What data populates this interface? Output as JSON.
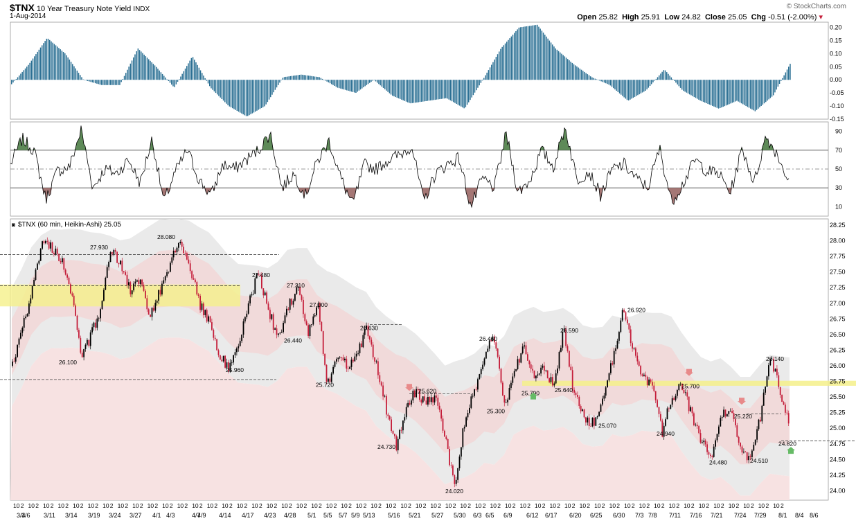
{
  "header": {
    "symbol": "$TNX",
    "name": "10 Year Treasury Note Yield",
    "exchange": "INDX",
    "date": "1-Aug-2014",
    "open_label": "Open",
    "open": "25.82",
    "high_label": "High",
    "high": "25.91",
    "low_label": "Low",
    "low": "24.82",
    "close_label": "Close",
    "close": "25.05",
    "chg_label": "Chg",
    "chg": "-0.51 (-2.00%)",
    "watermark": "© StockCharts.com"
  },
  "colors": {
    "osc_bar": "#2a6f93",
    "rsi_line": "#000000",
    "rsi_overbought": "#5e8a58",
    "rsi_oversold": "#a57775",
    "candle_up": "#000000",
    "candle_down": "#c41e3a",
    "highlight": "#f5f08a",
    "band_outer": "#e8e8e8",
    "band_inner": "#f2d6d6"
  },
  "chart_data": [
    {
      "type": "bar",
      "panel": "oscillator",
      "ylim": [
        -0.15,
        0.22
      ],
      "y_ticks": [
        "0.20",
        "0.15",
        "0.10",
        "0.05",
        "0.00",
        "-0.05",
        "-0.10",
        "-0.15"
      ],
      "series": [
        {
          "values": [
            -0.02,
            0.06,
            0.16,
            0.1,
            0.0,
            -0.02,
            -0.02,
            0.12,
            0.05,
            -0.03,
            0.09,
            -0.03,
            -0.1,
            -0.14,
            -0.1,
            0.01,
            0.02,
            0.01,
            -0.03,
            -0.05,
            0.0,
            -0.06,
            -0.09,
            -0.08,
            -0.07,
            -0.11,
            0.0,
            0.12,
            0.2,
            0.21,
            0.12,
            0.06,
            0.01,
            -0.02,
            -0.08,
            -0.04,
            0.04,
            -0.04,
            -0.08,
            -0.11,
            -0.08,
            -0.12,
            -0.06,
            0.07
          ]
        }
      ]
    },
    {
      "type": "line",
      "panel": "rsi",
      "ylim": [
        0,
        100
      ],
      "levels": [
        30,
        50,
        70
      ],
      "y_ticks": [
        "90",
        "70",
        "50",
        "30",
        "10"
      ],
      "series": [
        {
          "values": [
            55,
            82,
            70,
            18,
            48,
            52,
            92,
            30,
            50,
            45,
            60,
            35,
            82,
            15,
            48,
            70,
            38,
            22,
            55,
            50,
            60,
            70,
            88,
            30,
            45,
            22,
            58,
            80,
            40,
            12,
            55,
            50,
            60,
            65,
            75,
            15,
            45,
            55,
            62,
            10,
            40,
            30,
            88,
            25,
            38,
            70,
            52,
            95,
            38,
            48,
            22,
            50,
            55,
            40,
            30,
            72,
            15,
            35,
            60,
            48,
            45,
            25,
            72,
            35,
            85,
            65,
            35
          ]
        }
      ]
    },
    {
      "type": "candlestick",
      "panel": "price",
      "title": "$TNX (60 min, Heikin-Ashi) 25.05",
      "ylim": [
        23.85,
        28.35
      ],
      "y_ticks": [
        "28.25",
        "28.00",
        "27.75",
        "27.50",
        "27.25",
        "27.00",
        "26.75",
        "26.50",
        "26.25",
        "26.00",
        "25.75",
        "25.50",
        "25.25",
        "25.00",
        "24.75",
        "24.50",
        "24.25",
        "24.00"
      ],
      "x_ticks": [
        "3/4",
        "3/6",
        "3/11",
        "3/14",
        "3/19",
        "3/24",
        "3/27",
        "4/1",
        "4/3",
        "4/7",
        "4/9",
        "4/14",
        "4/17",
        "4/23",
        "4/28",
        "5/1",
        "5/5",
        "5/7",
        "5/9",
        "5/13",
        "5/16",
        "5/21",
        "5/27",
        "5/30",
        "6/3",
        "6/5",
        "6/9",
        "6/12",
        "6/17",
        "6/20",
        "6/25",
        "6/30",
        "7/3",
        "7/8",
        "7/11",
        "7/16",
        "7/21",
        "7/24",
        "7/29",
        "8/1",
        "8/4",
        "8/6"
      ],
      "hour_ticks": [
        "10",
        "2",
        "10",
        "2",
        "10",
        "2",
        "10",
        "2",
        "10",
        "2",
        "10",
        "2",
        "10",
        "2",
        "10",
        "2",
        "10",
        "2",
        "10",
        "2",
        "10",
        "2",
        "10",
        "2",
        "10",
        "2",
        "10",
        "2",
        "10",
        "2",
        "10",
        "2",
        "10",
        "2",
        "10",
        "2",
        "10",
        "2",
        "10",
        "2",
        "10",
        "2",
        "10",
        "2",
        "10",
        "2",
        "10",
        "2",
        "10",
        "2",
        "10",
        "2",
        "10",
        "2",
        "10",
        "2",
        "10",
        "2",
        "10",
        "2",
        "10",
        "2",
        "10",
        "2",
        "10",
        "2",
        "10",
        "2",
        "10",
        "2",
        "10",
        "2",
        "10",
        "2",
        "10",
        "2",
        "10",
        "2",
        "10",
        "2",
        "10",
        "2",
        "10",
        "2",
        "10",
        "2",
        "10",
        "2",
        "10",
        "2",
        "10",
        "2",
        "10",
        "2",
        "10",
        "2",
        "10",
        "2",
        "10",
        "2",
        "10",
        "2",
        "10",
        "2"
      ],
      "close_path": [
        26.0,
        26.6,
        27.2,
        28.0,
        27.9,
        27.7,
        27.2,
        26.1,
        26.5,
        26.9,
        27.9,
        27.6,
        27.2,
        27.4,
        26.8,
        27.2,
        27.6,
        28.0,
        27.6,
        27.0,
        26.7,
        26.2,
        25.96,
        26.3,
        27.0,
        27.48,
        26.9,
        26.44,
        26.9,
        27.31,
        26.5,
        27.0,
        25.72,
        26.1,
        26.0,
        26.2,
        26.6,
        26.0,
        25.3,
        24.73,
        25.3,
        25.62,
        25.4,
        25.5,
        24.8,
        24.02,
        25.2,
        25.6,
        26.2,
        26.46,
        25.3,
        25.9,
        26.3,
        25.79,
        26.0,
        25.64,
        26.59,
        25.6,
        25.2,
        25.07,
        25.5,
        26.1,
        26.92,
        26.3,
        25.8,
        25.7,
        24.94,
        25.5,
        25.7,
        25.2,
        24.8,
        24.48,
        25.22,
        25.3,
        24.6,
        24.51,
        25.2,
        26.14,
        25.6,
        25.05
      ],
      "annotations": [
        {
          "value": "26.100"
        },
        {
          "value": "27.930"
        },
        {
          "value": "28.080"
        },
        {
          "value": "25.960"
        },
        {
          "value": "27.480"
        },
        {
          "value": "26.440"
        },
        {
          "value": "27.310"
        },
        {
          "value": "27.000"
        },
        {
          "value": "25.720"
        },
        {
          "value": "26.630"
        },
        {
          "value": "24.730"
        },
        {
          "value": "25.620"
        },
        {
          "value": "24.020"
        },
        {
          "value": "26.460"
        },
        {
          "value": "25.300"
        },
        {
          "value": "25.790"
        },
        {
          "value": "26.590"
        },
        {
          "value": "25.640"
        },
        {
          "value": "25.070"
        },
        {
          "value": "26.920"
        },
        {
          "value": "24.940"
        },
        {
          "value": "25.700"
        },
        {
          "value": "24.480"
        },
        {
          "value": "25.220"
        },
        {
          "value": "24.510"
        },
        {
          "value": "26.140"
        },
        {
          "value": "24.820"
        }
      ],
      "support_resistance": [
        27.78,
        27.28,
        26.66,
        25.78,
        25.55,
        25.23,
        24.8
      ],
      "highlight_zones": [
        {
          "from": 26.95,
          "to": 27.3
        },
        {
          "from": 25.68,
          "to": 25.76
        }
      ]
    }
  ]
}
